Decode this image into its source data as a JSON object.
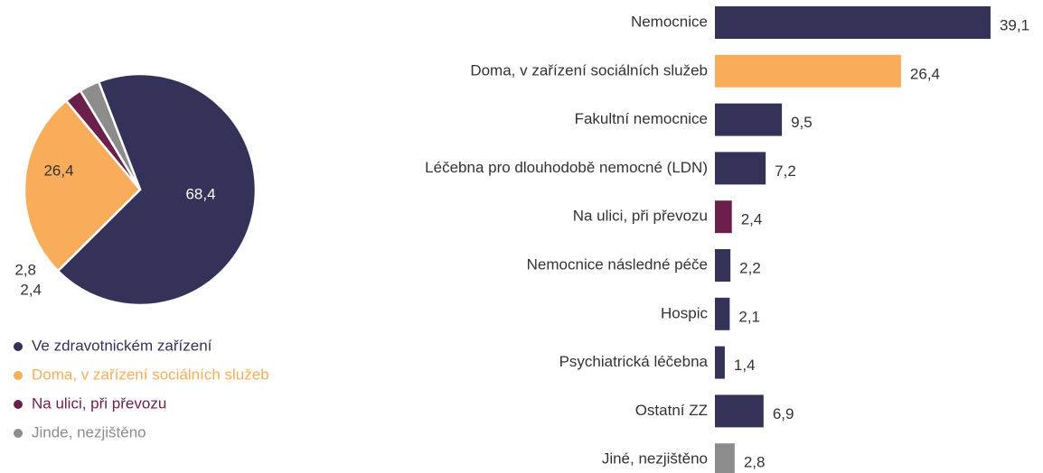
{
  "chart_data": [
    {
      "type": "pie",
      "series": [
        {
          "name": "Ve zdravotnickém zařízení",
          "color": "#35325a"
        },
        {
          "name": "Doma, v zařízení sociálních služeb",
          "color": "#f9ad5a"
        },
        {
          "name": "Na ulici, při převozu",
          "color": "#6b1f4a"
        },
        {
          "name": "Jinde, nezjištěno",
          "color": "#8c8c8c"
        }
      ],
      "values": [
        68.4,
        26.4,
        2.4,
        2.8
      ],
      "value_labels": [
        "68,4",
        "26,4",
        "2,4",
        "2,8"
      ]
    },
    {
      "type": "bar",
      "orientation": "horizontal",
      "categories": [
        "Nemocnice",
        "Doma, v zařízení sociálních služeb",
        "Fakultní nemocnice",
        "Léčebna pro dlouhodobě nemocné (LDN)",
        "Na ulici, při převozu",
        "Nemocnice následné péče",
        "Hospic",
        "Psychiatrická léčebna",
        "Ostatní ZZ",
        "Jiné, nezjištěno"
      ],
      "values": [
        39.1,
        26.4,
        9.5,
        7.2,
        2.4,
        2.2,
        2.1,
        1.4,
        6.9,
        2.8
      ],
      "value_labels": [
        "39,1",
        "26,4",
        "9,5",
        "7,2",
        "2,4",
        "2,2",
        "2,1",
        "1,4",
        "6,9",
        "2,8"
      ],
      "colors": [
        "#35325a",
        "#f9ad5a",
        "#35325a",
        "#35325a",
        "#6b1f4a",
        "#35325a",
        "#35325a",
        "#35325a",
        "#35325a",
        "#8c8c8c"
      ]
    }
  ]
}
